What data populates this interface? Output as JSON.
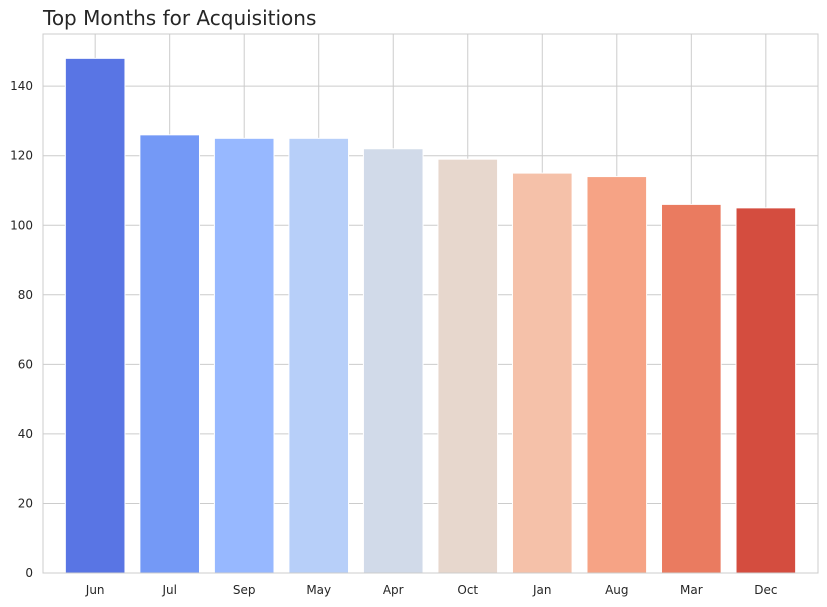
{
  "chart_data": {
    "type": "bar",
    "title": "Top Months for Acquisitions",
    "xlabel": "",
    "ylabel": "",
    "categories": [
      "Jun",
      "Jul",
      "Sep",
      "May",
      "Apr",
      "Oct",
      "Jan",
      "Aug",
      "Mar",
      "Dec"
    ],
    "values": [
      148,
      126,
      125,
      125,
      122,
      119,
      115,
      114,
      106,
      105
    ],
    "colors": [
      "#5975e4",
      "#7499f6",
      "#97b8ff",
      "#b7cff9",
      "#d1dae9",
      "#e7d7cd",
      "#f5c1a9",
      "#f6a385",
      "#ea7b60",
      "#d44d3f"
    ],
    "ylim": [
      0,
      155
    ],
    "yticks": [
      0,
      20,
      40,
      60,
      80,
      100,
      120,
      140
    ],
    "grid": true,
    "legend": "none"
  }
}
